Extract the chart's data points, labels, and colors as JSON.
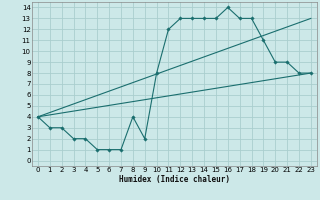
{
  "xlabel": "Humidex (Indice chaleur)",
  "bg_color": "#cce8e8",
  "grid_color": "#aacece",
  "line_color": "#1a6e6e",
  "xlim": [
    -0.5,
    23.5
  ],
  "ylim": [
    -0.5,
    14.5
  ],
  "xticks": [
    0,
    1,
    2,
    3,
    4,
    5,
    6,
    7,
    8,
    9,
    10,
    11,
    12,
    13,
    14,
    15,
    16,
    17,
    18,
    19,
    20,
    21,
    22,
    23
  ],
  "yticks": [
    0,
    1,
    2,
    3,
    4,
    5,
    6,
    7,
    8,
    9,
    10,
    11,
    12,
    13,
    14
  ],
  "jagged": {
    "x": [
      0,
      1,
      2,
      3,
      4,
      5,
      6,
      7,
      8,
      9,
      10,
      11,
      12,
      13,
      14,
      15,
      16,
      17,
      18,
      19,
      20,
      21,
      22,
      23
    ],
    "y": [
      4,
      3,
      3,
      2,
      2,
      1,
      1,
      1,
      4,
      2,
      8,
      12,
      13,
      13,
      13,
      13,
      14,
      13,
      13,
      11,
      9,
      9,
      8,
      8
    ]
  },
  "line1": {
    "x": [
      0,
      23
    ],
    "y": [
      4,
      13
    ]
  },
  "line2": {
    "x": [
      0,
      23
    ],
    "y": [
      4,
      8
    ]
  }
}
